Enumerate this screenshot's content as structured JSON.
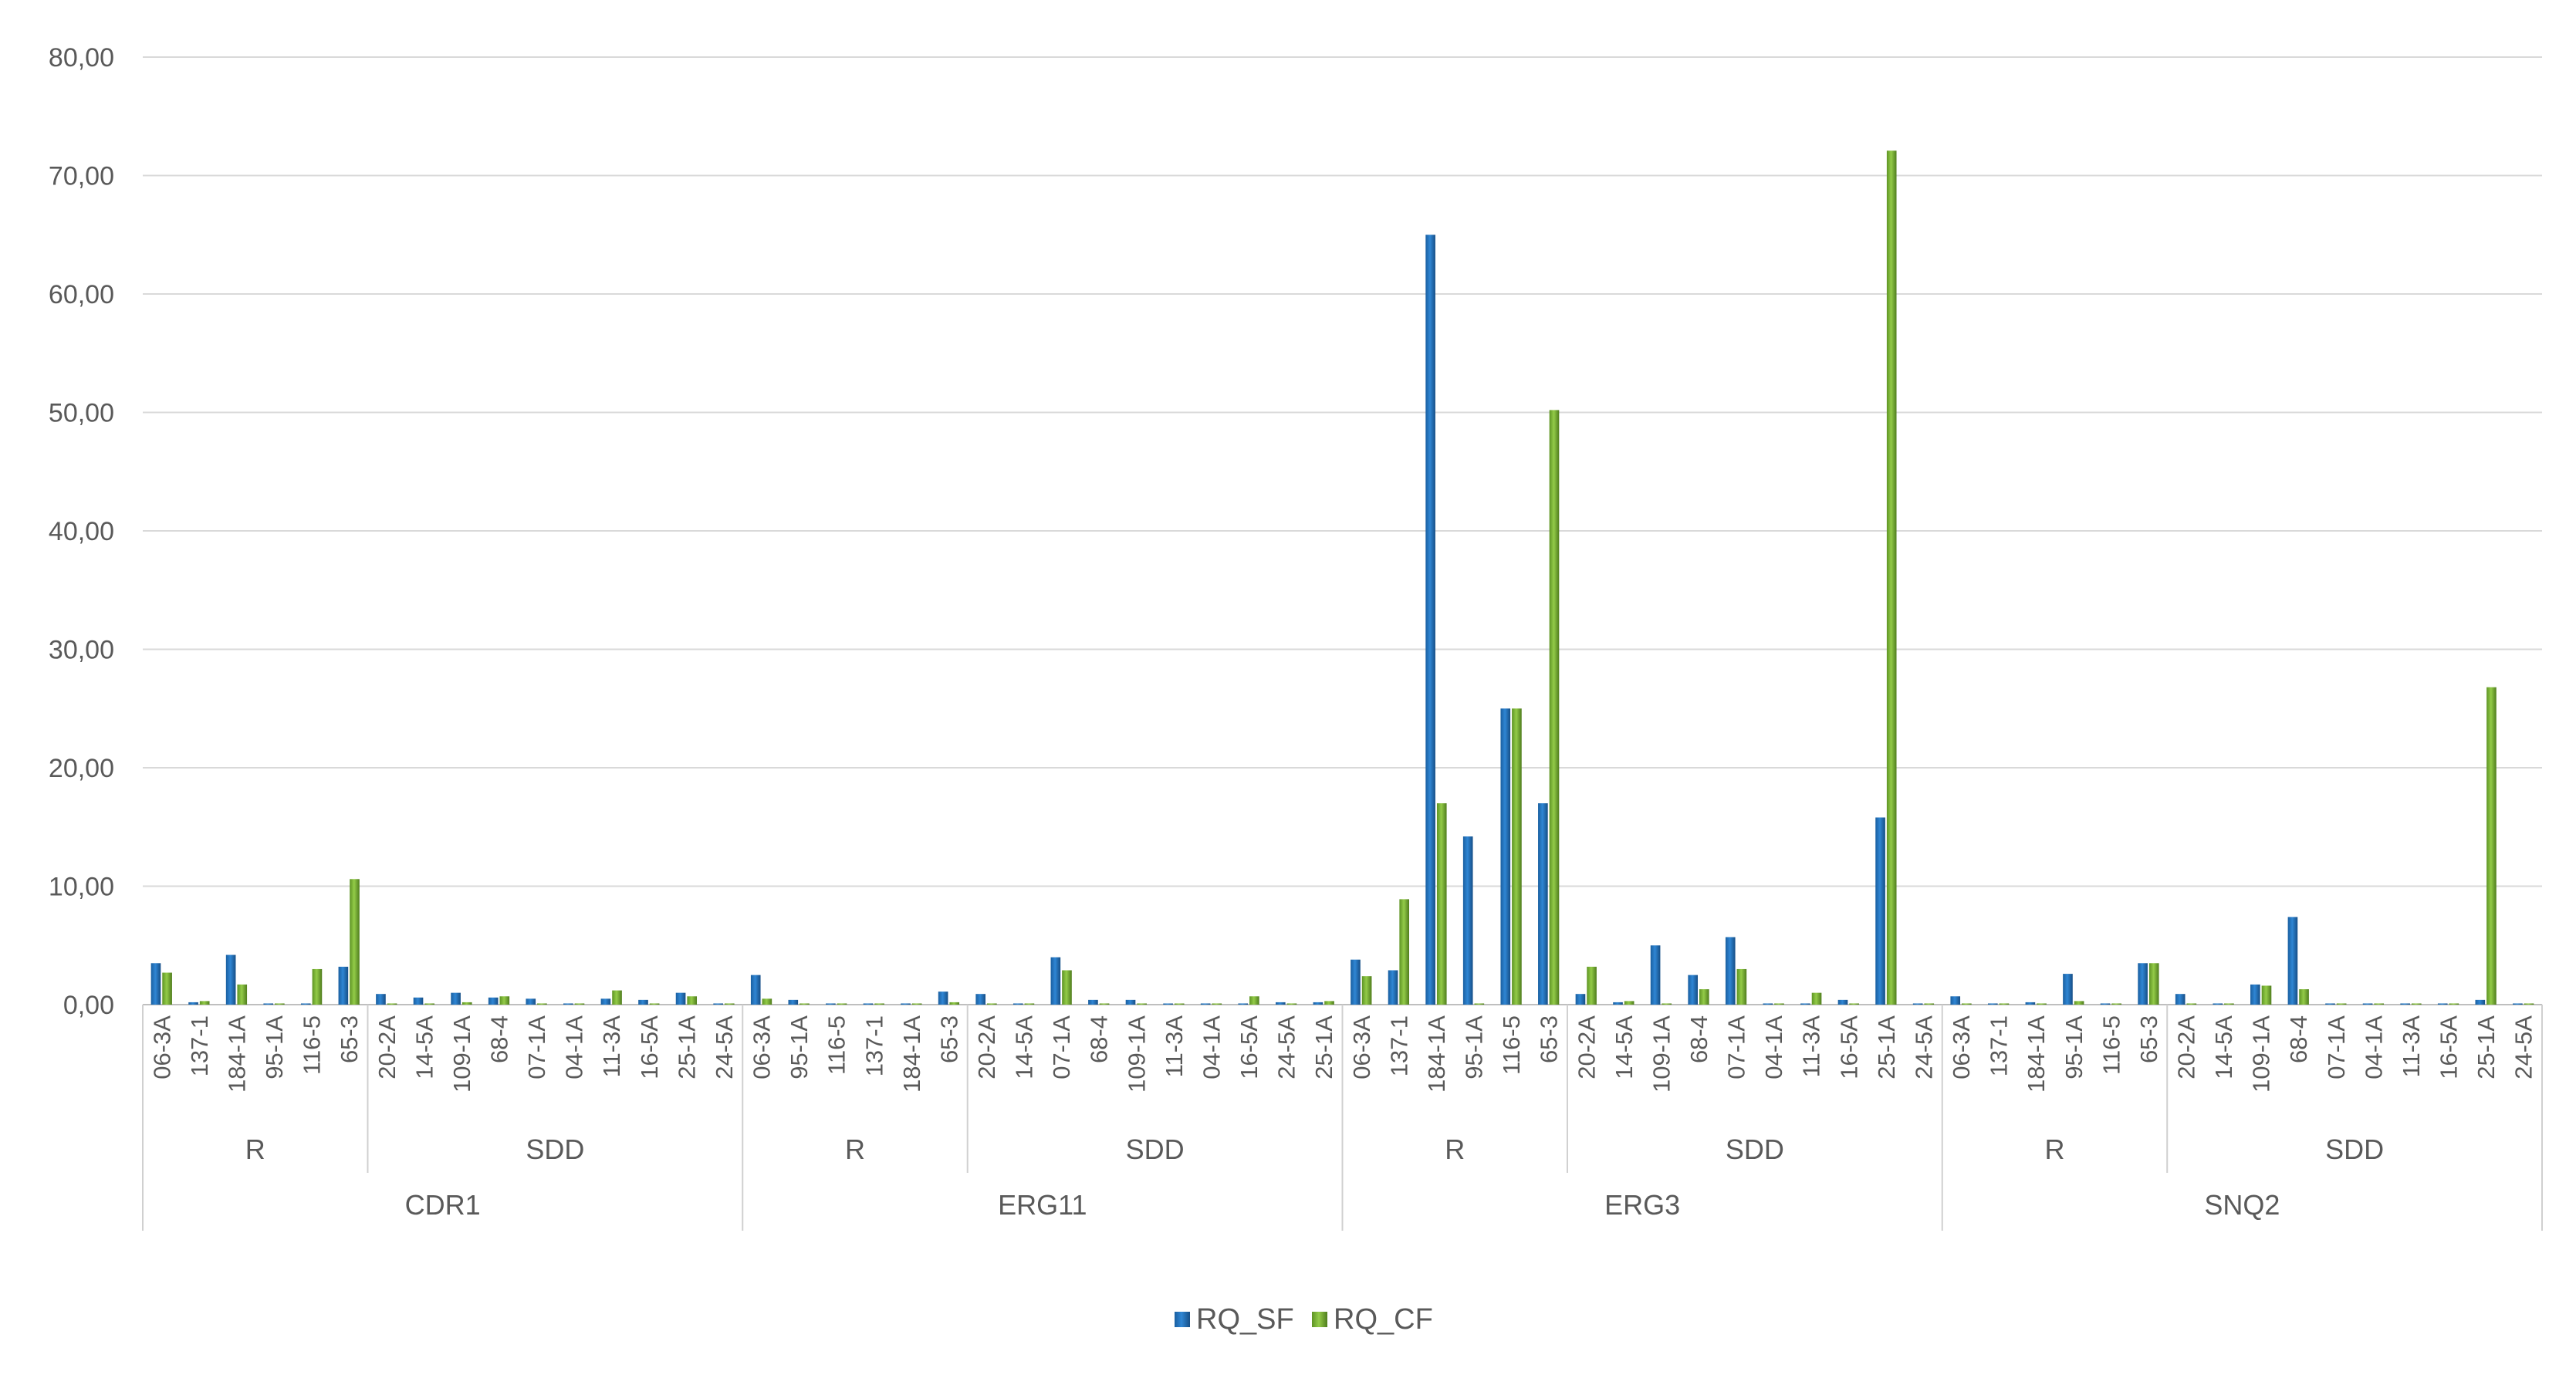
{
  "chart_data": {
    "type": "bar",
    "title": "",
    "xlabel": "",
    "ylabel": "",
    "ylim": [
      0,
      80
    ],
    "yticks": [
      "0,00",
      "10,00",
      "20,00",
      "30,00",
      "40,00",
      "50,00",
      "60,00",
      "70,00",
      "80,00"
    ],
    "grid": true,
    "legend_position": "bottom",
    "genes": [
      {
        "name": "CDR1",
        "groups": [
          {
            "name": "R",
            "categories": [
              "06-3A",
              "137-1",
              "184-1A",
              "95-1A",
              "116-5",
              "65-3"
            ]
          },
          {
            "name": "SDD",
            "categories": [
              "20-2A",
              "14-5A",
              "109-1A",
              "68-4",
              "07-1A",
              "04-1A",
              "11-3A",
              "16-5A",
              "25-1A",
              "24-5A"
            ]
          }
        ]
      },
      {
        "name": "ERG11",
        "groups": [
          {
            "name": "R",
            "categories": [
              "06-3A",
              "95-1A",
              "116-5",
              "137-1",
              "184-1A",
              "65-3"
            ]
          },
          {
            "name": "SDD",
            "categories": [
              "20-2A",
              "14-5A",
              "07-1A",
              "68-4",
              "109-1A",
              "11-3A",
              "04-1A",
              "16-5A",
              "24-5A",
              "25-1A"
            ]
          }
        ]
      },
      {
        "name": "ERG3",
        "groups": [
          {
            "name": "R",
            "categories": [
              "06-3A",
              "137-1",
              "184-1A",
              "95-1A",
              "116-5",
              "65-3"
            ]
          },
          {
            "name": "SDD",
            "categories": [
              "20-2A",
              "14-5A",
              "109-1A",
              "68-4",
              "07-1A",
              "04-1A",
              "11-3A",
              "16-5A",
              "25-1A",
              "24-5A"
            ]
          }
        ]
      },
      {
        "name": "SNQ2",
        "groups": [
          {
            "name": "R",
            "categories": [
              "06-3A",
              "137-1",
              "184-1A",
              "95-1A",
              "116-5",
              "65-3"
            ]
          },
          {
            "name": "SDD",
            "categories": [
              "20-2A",
              "14-5A",
              "109-1A",
              "68-4",
              "07-1A",
              "04-1A",
              "11-3A",
              "16-5A",
              "25-1A",
              "24-5A"
            ]
          }
        ]
      }
    ],
    "series": [
      {
        "name": "RQ_SF",
        "color": "#1F6FB8",
        "values": [
          3.5,
          0.2,
          4.2,
          0.1,
          0.1,
          3.2,
          0.9,
          0.6,
          1.0,
          0.6,
          0.5,
          0.1,
          0.5,
          0.4,
          1.0,
          0.1,
          2.5,
          0.4,
          0.1,
          0.1,
          0.1,
          1.1,
          0.9,
          0.1,
          4.0,
          0.4,
          0.4,
          0.0,
          0.1,
          0.1,
          0.2,
          0.2,
          3.8,
          2.9,
          65.0,
          14.2,
          25.0,
          17.0,
          0.9,
          0.2,
          5.0,
          2.5,
          5.7,
          0.1,
          0.1,
          0.4,
          15.8,
          0.1,
          0.7,
          0.1,
          0.2,
          2.6,
          0.1,
          3.5,
          0.9,
          0.1,
          1.7,
          7.4,
          0.1,
          0.1,
          0.1,
          0.1,
          0.4,
          0.1
        ]
      },
      {
        "name": "RQ_CF",
        "color": "#7DB835",
        "values": [
          2.7,
          0.3,
          1.7,
          0.1,
          3.0,
          10.6,
          0.1,
          0.1,
          0.2,
          0.7,
          0.1,
          0.1,
          1.2,
          0.1,
          0.7,
          0.1,
          0.5,
          0.1,
          0.1,
          0.1,
          0.1,
          0.2,
          0.1,
          0.1,
          2.9,
          0.1,
          0.1,
          0.0,
          0.1,
          0.7,
          0.1,
          0.3,
          2.4,
          8.9,
          17.0,
          0.1,
          25.0,
          50.2,
          3.2,
          0.3,
          0.1,
          1.3,
          3.0,
          0.1,
          1.0,
          0.1,
          72.1,
          0.1,
          0.1,
          0.1,
          0.1,
          0.3,
          0.1,
          3.5,
          0.1,
          0.1,
          1.6,
          1.3,
          0.1,
          0.1,
          0.1,
          0.1,
          26.8,
          0.1
        ]
      }
    ]
  }
}
